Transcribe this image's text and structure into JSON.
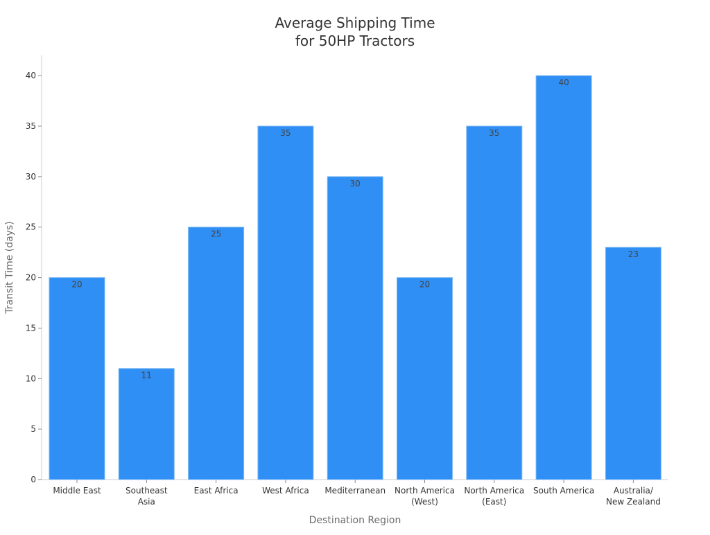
{
  "chart_data": {
    "type": "bar",
    "title_lines": [
      "Average Shipping Time",
      "for 50HP Tractors"
    ],
    "xlabel": "Destination Region",
    "ylabel": "Transit Time (days)",
    "categories": [
      [
        "Middle East"
      ],
      [
        "Southeast",
        "Asia"
      ],
      [
        "East Africa"
      ],
      [
        "West Africa"
      ],
      [
        "Mediterranean"
      ],
      [
        "North America",
        "(West)"
      ],
      [
        "North America",
        "(East)"
      ],
      [
        "South America"
      ],
      [
        "Australia/",
        "New Zealand"
      ]
    ],
    "values": [
      20,
      11,
      25,
      35,
      30,
      20,
      35,
      40,
      23
    ],
    "ylim": [
      0,
      42
    ],
    "yticks": [
      0,
      5,
      10,
      15,
      20,
      25,
      30,
      35,
      40
    ],
    "grid": false,
    "legend": "none",
    "colors": {
      "bar": "#2f8ff5",
      "bar_edge": "#7fb9f2",
      "axis": "#cccccc",
      "text": "#333333"
    }
  }
}
